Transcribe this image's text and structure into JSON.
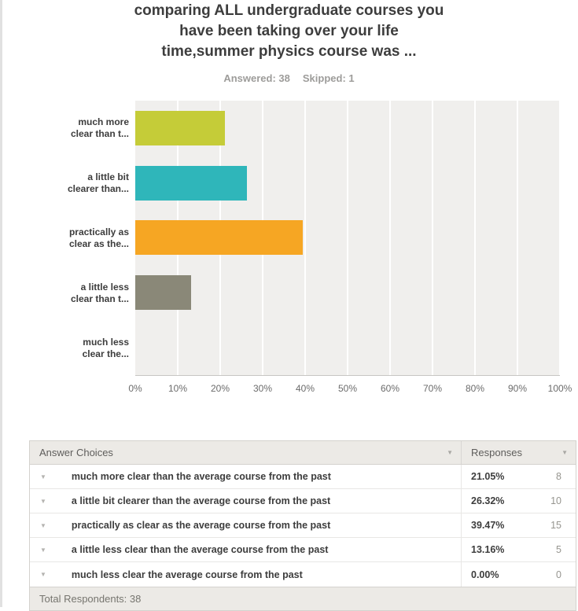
{
  "header": {
    "title_lines": [
      "comparing ALL undergraduate courses you",
      "have been taking over your life",
      "time,summer physics course was ..."
    ],
    "answered": "Answered: 38",
    "skipped": "Skipped: 1"
  },
  "chart_data": {
    "type": "bar",
    "orientation": "horizontal",
    "title": "comparing ALL undergraduate courses you have been taking over your life time,summer physics course was ...",
    "categories": [
      "much more clear than t...",
      "a little bit clearer than...",
      "practically as clear as the...",
      "a little less clear than t...",
      "much less clear the..."
    ],
    "category_label_lines": [
      [
        "much more",
        "clear than t..."
      ],
      [
        "a little bit",
        "clearer than..."
      ],
      [
        "practically as",
        "clear as the..."
      ],
      [
        "a little less",
        "clear than t..."
      ],
      [
        "much less",
        "clear the..."
      ]
    ],
    "values": [
      21.05,
      26.32,
      39.47,
      13.16,
      0
    ],
    "value_unit": "percent",
    "xlabel": "",
    "ylabel": "",
    "xlim": [
      0,
      100
    ],
    "x_ticks": [
      "0%",
      "10%",
      "20%",
      "30%",
      "40%",
      "50%",
      "60%",
      "70%",
      "80%",
      "90%",
      "100%"
    ],
    "grid": true,
    "legend": false,
    "bar_colors": [
      "#c5cc38",
      "#2fb6ba",
      "#f6a623",
      "#8a8878",
      null
    ],
    "plot_bg": "#f0efed"
  },
  "table": {
    "columns": [
      "Answer Choices",
      "Responses"
    ],
    "rows": [
      {
        "answer": "much more clear than the average course from the past",
        "percent": "21.05%",
        "count": "8"
      },
      {
        "answer": "a little bit clearer than the average course from the past",
        "percent": "26.32%",
        "count": "10"
      },
      {
        "answer": "practically as clear as the average course from the past",
        "percent": "39.47%",
        "count": "15"
      },
      {
        "answer": "a little less clear than the average course from the past",
        "percent": "13.16%",
        "count": "5"
      },
      {
        "answer": "much less clear the average course from the past",
        "percent": "0.00%",
        "count": "0"
      }
    ],
    "footer": "Total Respondents: 38"
  }
}
